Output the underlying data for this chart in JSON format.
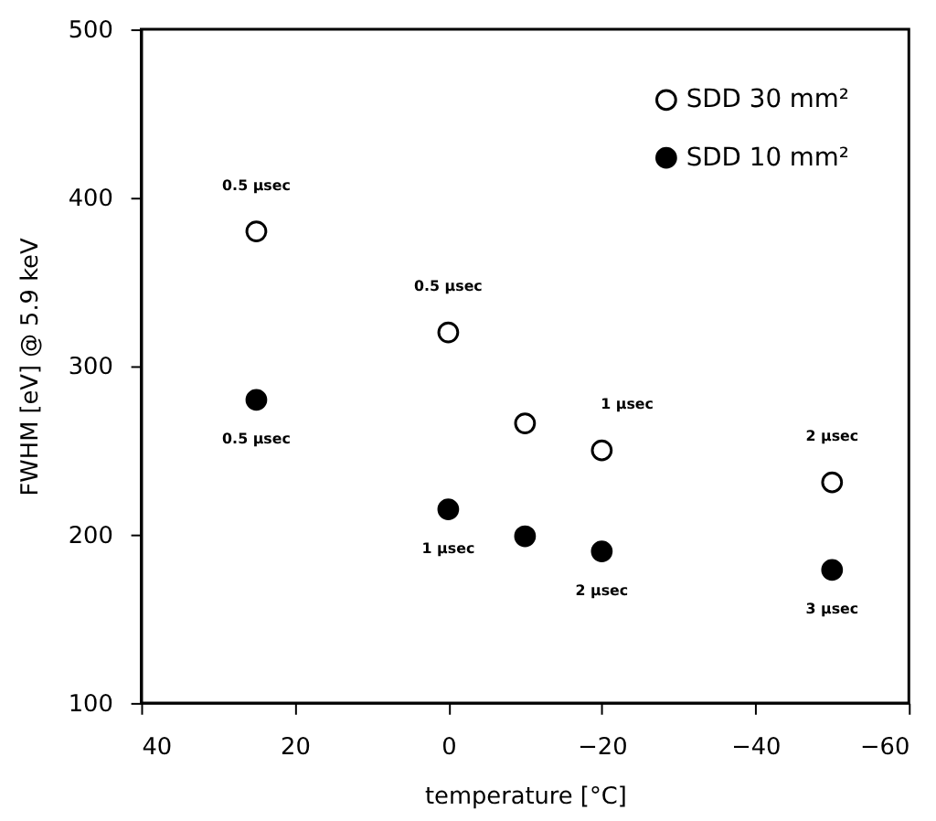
{
  "chart_data": {
    "type": "scatter",
    "xlabel": "temperature [°C]",
    "ylabel": "FWHM [eV] @ 5.9 keV",
    "x": [
      25,
      0,
      -10,
      -20,
      -50
    ],
    "series": [
      {
        "name": "SDD 30 mm²",
        "color": "#ffffff",
        "values": [
          380,
          320,
          266,
          250,
          231
        ]
      },
      {
        "name": "SDD 10 mm²",
        "color": "#000000",
        "values": [
          280,
          215,
          199,
          190,
          179
        ]
      }
    ],
    "xlim": [
      40,
      -60
    ],
    "xticks": [
      40,
      20,
      0,
      -20,
      -40,
      -60
    ],
    "ylim": [
      100,
      500
    ],
    "yticks": [
      100,
      200,
      300,
      400,
      500
    ],
    "marker": "circle",
    "grid": false,
    "legend": "top right",
    "annotations": [
      {
        "text": "0.5 μsec",
        "x": 25,
        "y": 380
      },
      {
        "text": "0.5 μsec",
        "x": 0,
        "y": 320
      },
      {
        "text": "1 μsec",
        "x": -20,
        "y": 250
      },
      {
        "text": "2 μsec",
        "x": -50,
        "y": 231
      },
      {
        "text": "0.5 μsec",
        "x": 25,
        "y": 280
      },
      {
        "text": "1 μsec",
        "x": 0,
        "y": 215
      },
      {
        "text": "2 μsec",
        "x": -20,
        "y": 190
      },
      {
        "text": "3 μsec",
        "x": -50,
        "y": 179
      }
    ]
  }
}
